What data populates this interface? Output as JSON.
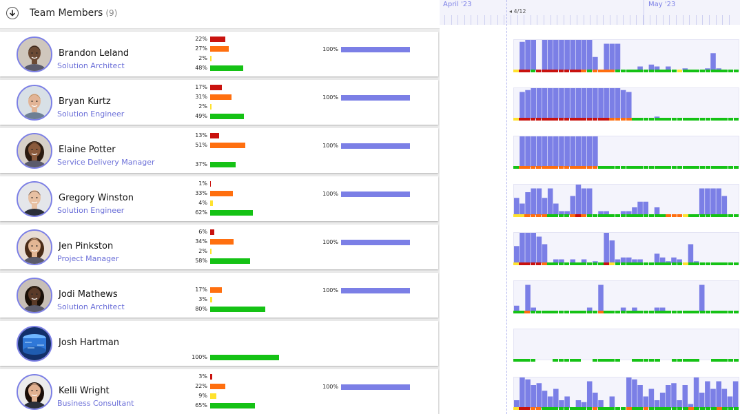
{
  "header": {
    "title": "Team Members",
    "count": "(9)"
  },
  "timeline": {
    "months": [
      "April '23",
      "May '23"
    ],
    "today_label": "◂ 4/12"
  },
  "colors": {
    "accent": "#7b7fe6",
    "red": "#c9120e",
    "orange": "#ff6f0f",
    "yellow": "#ffe22f",
    "green": "#15c215"
  },
  "members": [
    {
      "name": "Brandon Leland",
      "role": "Solution Architect",
      "avatar": "man-dark",
      "stats": [
        {
          "pct": "22%",
          "level": 22,
          "color": "red"
        },
        {
          "pct": "27%",
          "level": 27,
          "color": "orange"
        },
        {
          "pct": "2%",
          "level": 2,
          "color": "yellow"
        },
        {
          "pct": "48%",
          "level": 48,
          "color": "green"
        }
      ],
      "capacity": {
        "pct": "100%",
        "level": 100
      },
      "hist": [
        0,
        15,
        16,
        16,
        0,
        16,
        16,
        16,
        16,
        16,
        16,
        16,
        16,
        16,
        7,
        0,
        14,
        14,
        14,
        0,
        0,
        0,
        2,
        0,
        3,
        2,
        0,
        2,
        0,
        0,
        1,
        0,
        0,
        0,
        1,
        9,
        1,
        0,
        0,
        0
      ],
      "status": [
        "yellow",
        "red",
        "red",
        "green",
        "red",
        "red",
        "red",
        "red",
        "red",
        "red",
        "red",
        "red",
        "orange",
        "green",
        "orange",
        "orange",
        "orange",
        "orange",
        "green",
        "green",
        "green",
        "green",
        "green",
        "green",
        "green",
        "green",
        "green",
        "green",
        "green",
        "yellow",
        "green",
        "green",
        "green",
        "green",
        "green",
        "green",
        "green",
        "green",
        "green",
        "green"
      ]
    },
    {
      "name": "Bryan Kurtz",
      "role": "Solution Engineer",
      "avatar": "man-blond",
      "stats": [
        {
          "pct": "17%",
          "level": 17,
          "color": "red"
        },
        {
          "pct": "31%",
          "level": 31,
          "color": "orange"
        },
        {
          "pct": "2%",
          "level": 2,
          "color": "yellow"
        },
        {
          "pct": "49%",
          "level": 49,
          "color": "green"
        }
      ],
      "capacity": {
        "pct": "100%",
        "level": 100
      },
      "hist": [
        0,
        14,
        15,
        16,
        16,
        16,
        16,
        16,
        16,
        16,
        16,
        16,
        16,
        16,
        16,
        16,
        16,
        16,
        16,
        15,
        14,
        0,
        0,
        0,
        0,
        1,
        0,
        0,
        0,
        0,
        0,
        0,
        0,
        0,
        0,
        0,
        0,
        0,
        0,
        0
      ],
      "status": [
        "yellow",
        "red",
        "red",
        "red",
        "red",
        "red",
        "red",
        "red",
        "red",
        "red",
        "red",
        "red",
        "red",
        "red",
        "red",
        "red",
        "red",
        "orange",
        "orange",
        "orange",
        "orange",
        "green",
        "green",
        "green",
        "green",
        "green",
        "green",
        "green",
        "green",
        "green",
        "green",
        "green",
        "green",
        "green",
        "green",
        "green",
        "green",
        "green",
        "green",
        "green"
      ]
    },
    {
      "name": "Elaine Potter",
      "role": "Service Delivery Manager",
      "avatar": "woman-curly",
      "stats": [
        {
          "pct": "13%",
          "level": 13,
          "color": "red"
        },
        {
          "pct": "51%",
          "level": 51,
          "color": "orange"
        },
        {
          "pct": "",
          "level": 0,
          "color": "yellow"
        },
        {
          "pct": "37%",
          "level": 37,
          "color": "green"
        }
      ],
      "capacity": {
        "pct": "100%",
        "level": 100
      },
      "hist": [
        0,
        16,
        16,
        16,
        16,
        16,
        16,
        16,
        16,
        16,
        16,
        16,
        16,
        16,
        16,
        0,
        0,
        0,
        0,
        0,
        0,
        0,
        0,
        0,
        0,
        0,
        0,
        0,
        0,
        0,
        0,
        0,
        0,
        0,
        0,
        0,
        0,
        0,
        0,
        0
      ],
      "status": [
        "green",
        "orange",
        "orange",
        "orange",
        "orange",
        "orange",
        "orange",
        "orange",
        "orange",
        "orange",
        "orange",
        "orange",
        "orange",
        "orange",
        "orange",
        "green",
        "green",
        "green",
        "green",
        "green",
        "green",
        "green",
        "green",
        "green",
        "green",
        "green",
        "green",
        "green",
        "green",
        "green",
        "green",
        "green",
        "green",
        "green",
        "green",
        "green",
        "green",
        "green",
        "green",
        "green"
      ]
    },
    {
      "name": "Gregory Winston",
      "role": "Solution Engineer",
      "avatar": "man-suit",
      "stats": [
        {
          "pct": "1%",
          "level": 1,
          "color": "red"
        },
        {
          "pct": "33%",
          "level": 33,
          "color": "orange"
        },
        {
          "pct": "4%",
          "level": 4,
          "color": "yellow"
        },
        {
          "pct": "62%",
          "level": 62,
          "color": "green"
        }
      ],
      "capacity": {
        "pct": "100%",
        "level": 100
      },
      "hist": [
        9,
        6,
        12,
        14,
        14,
        9,
        14,
        6,
        2,
        2,
        10,
        16,
        14,
        14,
        0,
        2,
        2,
        0,
        0,
        2,
        2,
        4,
        7,
        7,
        0,
        4,
        0,
        0,
        0,
        0,
        0,
        0,
        0,
        14,
        14,
        14,
        14,
        10,
        0,
        0
      ],
      "status": [
        "yellow",
        "yellow",
        "orange",
        "orange",
        "orange",
        "orange",
        "green",
        "green",
        "green",
        "green",
        "orange",
        "red",
        "orange",
        "green",
        "green",
        "green",
        "green",
        "green",
        "green",
        "green",
        "green",
        "green",
        "green",
        "green",
        "green",
        "green",
        "green",
        "orange",
        "orange",
        "orange",
        "yellow",
        "green",
        "green",
        "green",
        "green",
        "green",
        "green",
        "green",
        "green",
        "green"
      ]
    },
    {
      "name": "Jen Pinkston",
      "role": "Project Manager",
      "avatar": "woman-long",
      "stats": [
        {
          "pct": "6%",
          "level": 6,
          "color": "red"
        },
        {
          "pct": "34%",
          "level": 34,
          "color": "orange"
        },
        {
          "pct": "2%",
          "level": 2,
          "color": "yellow"
        },
        {
          "pct": "58%",
          "level": 58,
          "color": "green"
        }
      ],
      "capacity": {
        "pct": "100%",
        "level": 100
      },
      "hist": [
        9,
        16,
        16,
        16,
        14,
        10,
        0,
        2,
        2,
        0,
        2,
        0,
        2,
        0,
        1,
        0,
        16,
        12,
        2,
        3,
        3,
        2,
        2,
        0,
        0,
        5,
        3,
        1,
        3,
        2,
        0,
        10,
        1,
        0,
        0,
        0,
        0,
        0,
        0,
        0
      ],
      "status": [
        "yellow",
        "red",
        "red",
        "red",
        "red",
        "orange",
        "green",
        "green",
        "green",
        "green",
        "green",
        "green",
        "green",
        "green",
        "green",
        "green",
        "red",
        "yellow",
        "green",
        "green",
        "green",
        "green",
        "green",
        "green",
        "green",
        "green",
        "green",
        "green",
        "green",
        "green",
        "yellow",
        "green",
        "green",
        "green",
        "green",
        "green",
        "green",
        "green",
        "green",
        "green"
      ]
    },
    {
      "name": "Jodi Mathews",
      "role": "Solution Architect",
      "avatar": "woman-dark",
      "stats": [
        {
          "pct": "",
          "level": 0,
          "color": "red"
        },
        {
          "pct": "17%",
          "level": 17,
          "color": "orange"
        },
        {
          "pct": "3%",
          "level": 3,
          "color": "yellow"
        },
        {
          "pct": "80%",
          "level": 80,
          "color": "green"
        }
      ],
      "capacity": {
        "pct": "100%",
        "level": 100
      },
      "hist": [
        3,
        0,
        14,
        2,
        0,
        0,
        0,
        0,
        0,
        0,
        0,
        0,
        0,
        2,
        0,
        14,
        0,
        0,
        0,
        2,
        0,
        2,
        0,
        0,
        0,
        2,
        2,
        0,
        0,
        0,
        0,
        0,
        0,
        14,
        0,
        0,
        0,
        0,
        0,
        0
      ],
      "status": [
        "green",
        "green",
        "orange",
        "green",
        "green",
        "green",
        "green",
        "green",
        "green",
        "green",
        "green",
        "green",
        "green",
        "green",
        "green",
        "orange",
        "green",
        "green",
        "green",
        "green",
        "green",
        "green",
        "green",
        "green",
        "green",
        "green",
        "green",
        "green",
        "green",
        "green",
        "green",
        "green",
        "green",
        "green",
        "green",
        "green",
        "green",
        "green",
        "green",
        "green"
      ]
    },
    {
      "name": "Josh Hartman",
      "role": "",
      "avatar": "tech",
      "stats": [
        {
          "pct": "",
          "level": 0,
          "color": "red"
        },
        {
          "pct": "",
          "level": 0,
          "color": "orange"
        },
        {
          "pct": "",
          "level": 0,
          "color": "yellow"
        },
        {
          "pct": "100%",
          "level": 100,
          "color": "green"
        }
      ],
      "capacity": {
        "pct": "",
        "level": 0
      },
      "hist": [
        0,
        0,
        0,
        0,
        0,
        0,
        0,
        0,
        0,
        0,
        0,
        0,
        0,
        0,
        0,
        0,
        0,
        0,
        0,
        0,
        0,
        0,
        0,
        0,
        0,
        0,
        0,
        0,
        0,
        0,
        0,
        0,
        0,
        0,
        0,
        0,
        0,
        0,
        0,
        0
      ],
      "status": [
        "green",
        "green",
        "green",
        "green",
        "",
        "",
        "",
        "green",
        "green",
        "green",
        "green",
        "green",
        "",
        "",
        "green",
        "green",
        "green",
        "green",
        "green",
        "",
        "",
        "green",
        "green",
        "green",
        "green",
        "green",
        "",
        "",
        "green",
        "green",
        "green",
        "green",
        "green",
        "",
        "",
        "green",
        "green",
        "green",
        "green",
        "green"
      ]
    },
    {
      "name": "Kelli Wright",
      "role": "Business Consultant",
      "avatar": "woman-pro",
      "stats": [
        {
          "pct": "3%",
          "level": 3,
          "color": "red"
        },
        {
          "pct": "22%",
          "level": 22,
          "color": "orange"
        },
        {
          "pct": "9%",
          "level": 9,
          "color": "yellow"
        },
        {
          "pct": "65%",
          "level": 65,
          "color": "green"
        }
      ],
      "capacity": {
        "pct": "100%",
        "level": 100
      },
      "hist": [
        4,
        16,
        15,
        12,
        13,
        9,
        6,
        10,
        4,
        6,
        0,
        4,
        3,
        14,
        8,
        4,
        0,
        6,
        0,
        0,
        16,
        15,
        12,
        6,
        10,
        4,
        8,
        12,
        13,
        4,
        12,
        2,
        16,
        8,
        14,
        10,
        14,
        10,
        6,
        14
      ],
      "status": [
        "yellow",
        "red",
        "red",
        "orange",
        "orange",
        "green",
        "green",
        "green",
        "green",
        "green",
        "green",
        "green",
        "green",
        "green",
        "orange",
        "green",
        "green",
        "green",
        "green",
        "green",
        "orange",
        "green",
        "green",
        "orange",
        "green",
        "green",
        "green",
        "green",
        "green",
        "green",
        "green",
        "orange",
        "green",
        "green",
        "green",
        "green",
        "orange",
        "green",
        "green",
        "green"
      ]
    }
  ]
}
